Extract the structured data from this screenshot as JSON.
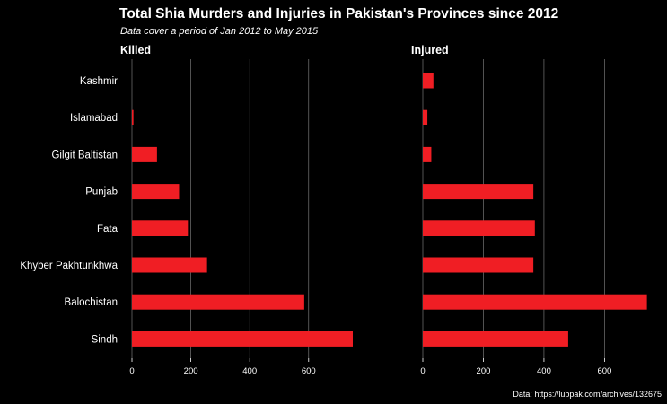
{
  "chart_data": {
    "type": "bar",
    "orientation": "horizontal",
    "title": "Total Shia Murders and Injuries in Pakistan's Provinces since 2012",
    "subtitle": "Data cover a period of Jan 2012  to May 2015",
    "caption": "Data: https://lubpak.com/archives/132675",
    "categories": [
      "Kashmir",
      "Islamabad",
      "Gilgit Baltistan",
      "Punjab",
      "Fata",
      "Khyber Pakhtunkhwa",
      "Balochistan",
      "Sindh"
    ],
    "xlim": [
      0,
      750
    ],
    "xticks": [
      0,
      200,
      400,
      600
    ],
    "grid": true,
    "bar_color": "#f01e24",
    "background": "#000000",
    "series": [
      {
        "name": "Killed",
        "values": [
          0,
          5,
          85,
          160,
          190,
          255,
          585,
          750
        ]
      },
      {
        "name": "Injured",
        "values": [
          35,
          15,
          28,
          365,
          370,
          365,
          740,
          480
        ]
      }
    ]
  }
}
